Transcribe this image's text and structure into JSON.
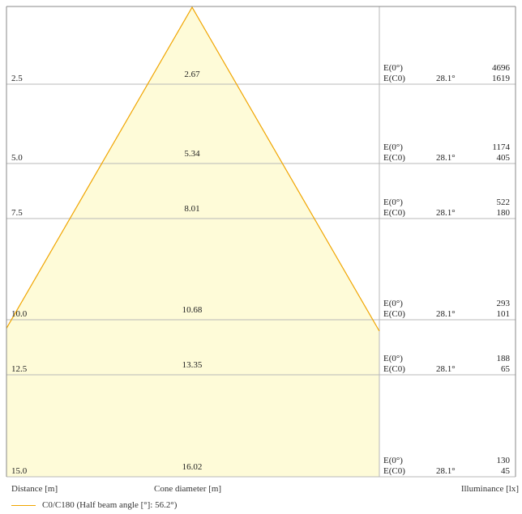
{
  "colors": {
    "cone_stroke": "#f0a500",
    "cone_fill": "#fefbd8",
    "grid": "#b8b8b8",
    "frame": "#888888"
  },
  "beam": {
    "half_angle_deg": 56.2
  },
  "rows": [
    {
      "distance": "2.5",
      "diameter": "2.67",
      "e0_label": "E(0°)",
      "ec0_label": "E(C0)",
      "angle": "28.1°",
      "e0": "4696",
      "ec0": "1619"
    },
    {
      "distance": "5.0",
      "diameter": "5.34",
      "e0_label": "E(0°)",
      "ec0_label": "E(C0)",
      "angle": "28.1°",
      "e0": "1174",
      "ec0": "405"
    },
    {
      "distance": "7.5",
      "diameter": "8.01",
      "e0_label": "E(0°)",
      "ec0_label": "E(C0)",
      "angle": "28.1°",
      "e0": "522",
      "ec0": "180"
    },
    {
      "distance": "10.0",
      "diameter": "10.68",
      "e0_label": "E(0°)",
      "ec0_label": "E(C0)",
      "angle": "28.1°",
      "e0": "293",
      "ec0": "101"
    },
    {
      "distance": "12.5",
      "diameter": "13.35",
      "e0_label": "E(0°)",
      "ec0_label": "E(C0)",
      "angle": "28.1°",
      "e0": "188",
      "ec0": "65"
    },
    {
      "distance": "15.0",
      "diameter": "16.02",
      "e0_label": "E(0°)",
      "ec0_label": "E(C0)",
      "angle": "28.1°",
      "e0": "130",
      "ec0": "45"
    }
  ],
  "footer": {
    "distance_label": "Distance [m]",
    "diameter_label": "Cone diameter [m]",
    "illuminance_label": "Illuminance [lx]"
  },
  "legend": {
    "label": "C0/C180 (Half beam angle [°]: 56.2°)"
  }
}
